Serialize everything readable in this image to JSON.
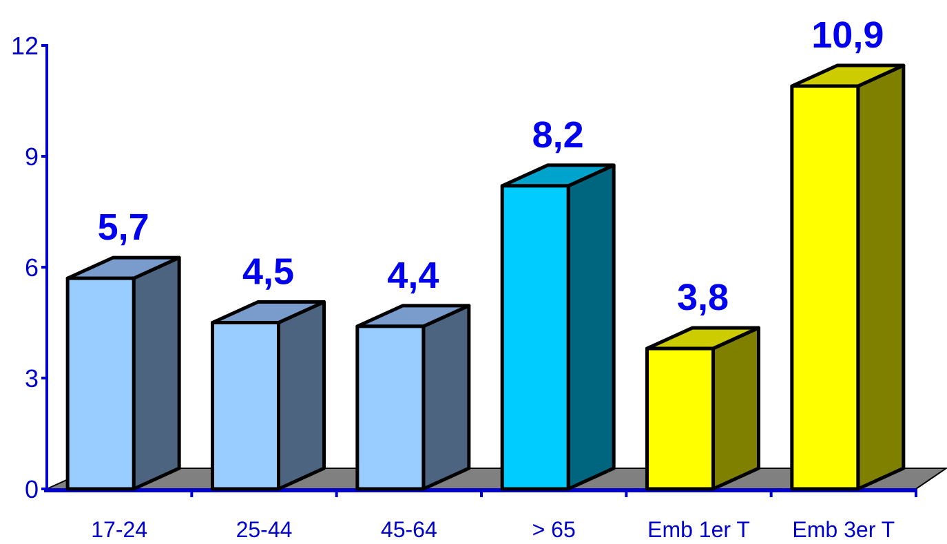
{
  "chart_data": {
    "type": "bar",
    "categories": [
      "17-24",
      "25-44",
      "45-64",
      "> 65",
      "Emb 1er T",
      "Emb 3er T"
    ],
    "values": [
      5.7,
      4.5,
      4.4,
      8.2,
      3.8,
      10.9
    ],
    "value_labels": [
      "5,7",
      "4,5",
      "4,4",
      "8,2",
      "3,8",
      "10,9"
    ],
    "yticks": [
      "0",
      "3",
      "6",
      "9",
      "12"
    ],
    "ylim": [
      0,
      12
    ],
    "grid": false,
    "legend": "none",
    "colors": {
      "axis": "#0000cc",
      "label": "#0000ee",
      "floor": "#808080",
      "bars": [
        {
          "front": "#99ccff",
          "side": "#4d6480",
          "top": "#7a9ccc"
        },
        {
          "front": "#99ccff",
          "side": "#4d6480",
          "top": "#7a9ccc"
        },
        {
          "front": "#99ccff",
          "side": "#4d6480",
          "top": "#7a9ccc"
        },
        {
          "front": "#00ccff",
          "side": "#006680",
          "top": "#00a3cc"
        },
        {
          "front": "#ffff00",
          "side": "#808000",
          "top": "#cccc00"
        },
        {
          "front": "#ffff00",
          "side": "#808000",
          "top": "#cccc00"
        }
      ]
    }
  }
}
